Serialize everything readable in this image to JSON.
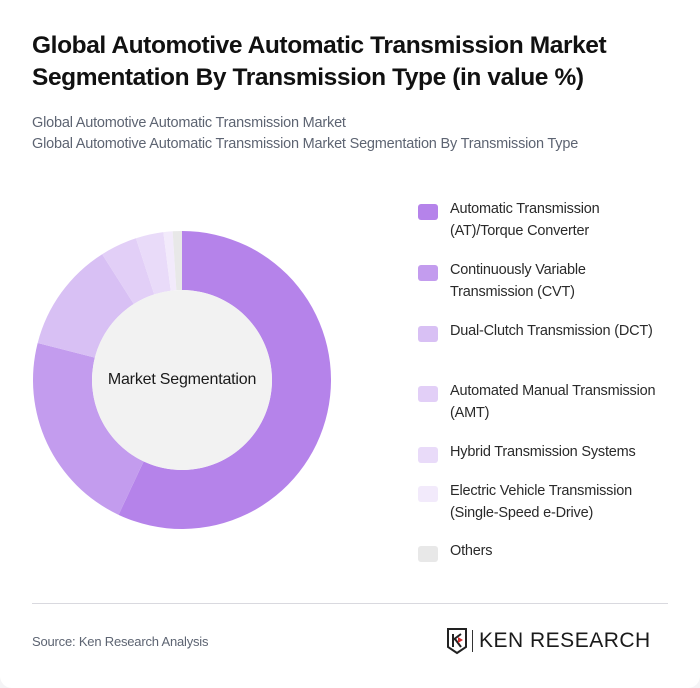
{
  "header": {
    "title": "Global Automotive Automatic Transmission Market Segmentation By Transmission Type (in value %)",
    "subtitle_line1": "Global Automotive Automatic Transmission Market",
    "subtitle_line2": "Global Automotive Automatic Transmission Market Segmentation By Transmission Type"
  },
  "chart": {
    "center_label": "Market Segmentation"
  },
  "legend": {
    "items": [
      {
        "label": "Automatic Transmission (AT)/Torque Converter",
        "color": "#b583ea"
      },
      {
        "label": "Continuously Variable Transmission (CVT)",
        "color": "#c39cee"
      },
      {
        "label": "Dual-Clutch Transmission (DCT)",
        "color": "#d8c0f4"
      },
      {
        "label": "Automated Manual Transmission (AMT)",
        "color": "#e2cff7"
      },
      {
        "label": "Hybrid Transmission Systems",
        "color": "#e9dbf9"
      },
      {
        "label": "Electric Vehicle Transmission (Single-Speed e-Drive)",
        "color": "#f2eafb"
      },
      {
        "label": "Others",
        "color": "#e8e8e8"
      }
    ]
  },
  "footer": {
    "source": "Source: Ken Research Analysis",
    "logo_text": "KEN RESEARCH"
  },
  "chart_data": {
    "type": "pie",
    "title": "Global Automotive Automatic Transmission Market Segmentation By Transmission Type (in value %)",
    "subtitle": "Global Automotive Automatic Transmission Market",
    "center_label": "Market Segmentation",
    "donut": true,
    "categories": [
      "Automatic Transmission (AT)/Torque Converter",
      "Continuously Variable Transmission (CVT)",
      "Dual-Clutch Transmission (DCT)",
      "Automated Manual Transmission (AMT)",
      "Hybrid Transmission Systems",
      "Electric Vehicle Transmission (Single-Speed e-Drive)",
      "Others"
    ],
    "values": [
      57,
      22,
      12,
      4,
      3,
      1,
      1
    ],
    "colors": [
      "#b583ea",
      "#c39cee",
      "#d8c0f4",
      "#e2cff7",
      "#e9dbf9",
      "#f2eafb",
      "#e8e8e8"
    ],
    "unit": "%",
    "legend_position": "right",
    "start_angle": "12 o'clock, clockwise"
  }
}
